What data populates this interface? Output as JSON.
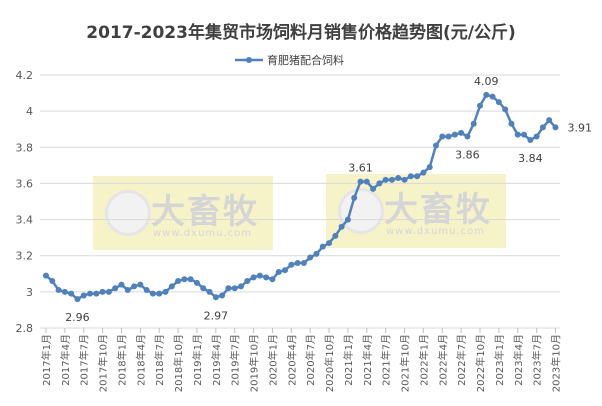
{
  "chart_data": {
    "type": "line",
    "title": "2017-2023年集贸市场饲料月销售价格趋势图(元/公斤)",
    "ylim": [
      2.8,
      4.2
    ],
    "yticks": [
      "2.8",
      "3",
      "3.2",
      "3.4",
      "3.6",
      "3.8",
      "4",
      "4.2"
    ],
    "grid": true,
    "legend_placement": "top",
    "series": [
      {
        "name": "育肥猪配合饲料",
        "color": "#4f81bd",
        "values": [
          3.09,
          3.06,
          3.01,
          3.0,
          2.99,
          2.96,
          2.98,
          2.99,
          2.99,
          3.0,
          3.0,
          3.02,
          3.04,
          3.01,
          3.03,
          3.04,
          3.01,
          2.99,
          2.99,
          3.0,
          3.03,
          3.06,
          3.07,
          3.07,
          3.05,
          3.02,
          3.0,
          2.97,
          2.98,
          3.02,
          3.02,
          3.03,
          3.06,
          3.08,
          3.09,
          3.08,
          3.07,
          3.11,
          3.12,
          3.15,
          3.16,
          3.16,
          3.19,
          3.21,
          3.25,
          3.27,
          3.31,
          3.36,
          3.4,
          3.52,
          3.61,
          3.61,
          3.57,
          3.6,
          3.62,
          3.62,
          3.63,
          3.62,
          3.64,
          3.64,
          3.66,
          3.69,
          3.81,
          3.86,
          3.86,
          3.87,
          3.88,
          3.86,
          3.93,
          4.03,
          4.09,
          4.08,
          4.05,
          4.01,
          3.93,
          3.87,
          3.87,
          3.84,
          3.86,
          3.91,
          3.95,
          3.91
        ]
      }
    ],
    "x_start": "2017年1月",
    "x_end": "2023年10月",
    "xtick_labels": [
      "2017年1月",
      "2017年4月",
      "2017年7月",
      "2017年10月",
      "2018年1月",
      "2018年4月",
      "2018年7月",
      "2018年10月",
      "2019年1月",
      "2019年4月",
      "2019年7月",
      "2019年10月",
      "2020年1月",
      "2020年4月",
      "2020年7月",
      "2020年10月",
      "2021年1月",
      "2021年4月",
      "2021年7月",
      "2021年10月",
      "2022年1月",
      "2022年4月",
      "2022年7月",
      "2022年10月",
      "2023年1月",
      "2023年4月",
      "2023年7月",
      "2023年10月"
    ],
    "annotations": [
      {
        "index": 5,
        "text": "2.96",
        "pos": "below"
      },
      {
        "index": 27,
        "text": "2.97",
        "pos": "below"
      },
      {
        "index": 50,
        "text": "3.61",
        "pos": "above"
      },
      {
        "index": 67,
        "text": "3.86",
        "pos": "below"
      },
      {
        "index": 70,
        "text": "4.09",
        "pos": "above"
      },
      {
        "index": 77,
        "text": "3.84",
        "pos": "below"
      },
      {
        "index": 81,
        "text": "3.91",
        "pos": "right"
      }
    ]
  },
  "watermark": {
    "brand": "大畜牧",
    "url": "www.dxumu.com"
  }
}
